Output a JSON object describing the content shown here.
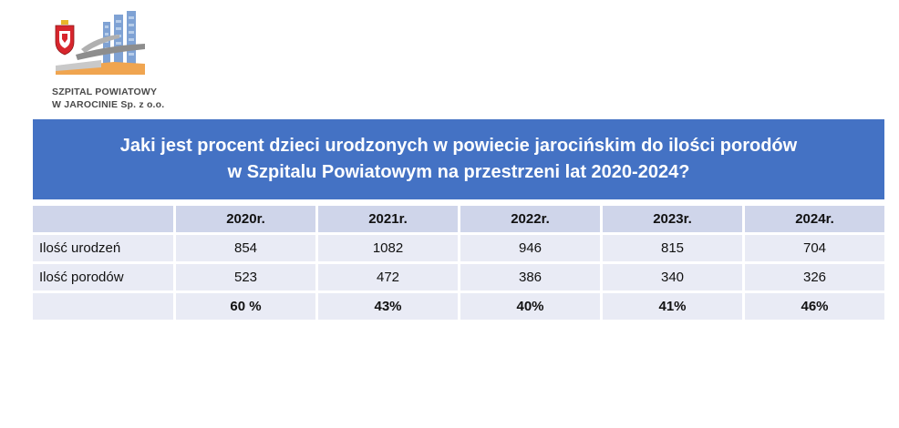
{
  "logo": {
    "line1": "SZPITAL POWIATOWY",
    "line2": "W JAROCINIE Sp. z o.o."
  },
  "banner": {
    "line1": "Jaki jest procent dzieci urodzonych w powiecie jarocińskim do ilości porodów",
    "line2": "w Szpitalu Powiatowym na przestrzeni lat 2020-2024?"
  },
  "table": {
    "columns": [
      "",
      "2020r.",
      "2021r.",
      "2022r.",
      "2023r.",
      "2024r."
    ],
    "rows": [
      {
        "label": "Ilość urodzeń",
        "values": [
          "854",
          "1082",
          "946",
          "815",
          "704"
        ]
      },
      {
        "label": "Ilość porodów",
        "values": [
          "523",
          "472",
          "386",
          "340",
          "326"
        ]
      },
      {
        "label": "",
        "values": [
          "60 %",
          "43%",
          "40%",
          "41%",
          "46%"
        ]
      }
    ]
  },
  "colors": {
    "banner": "#4472c4",
    "header_row": "#cfd5ea",
    "body_row": "#e9ebf5"
  }
}
